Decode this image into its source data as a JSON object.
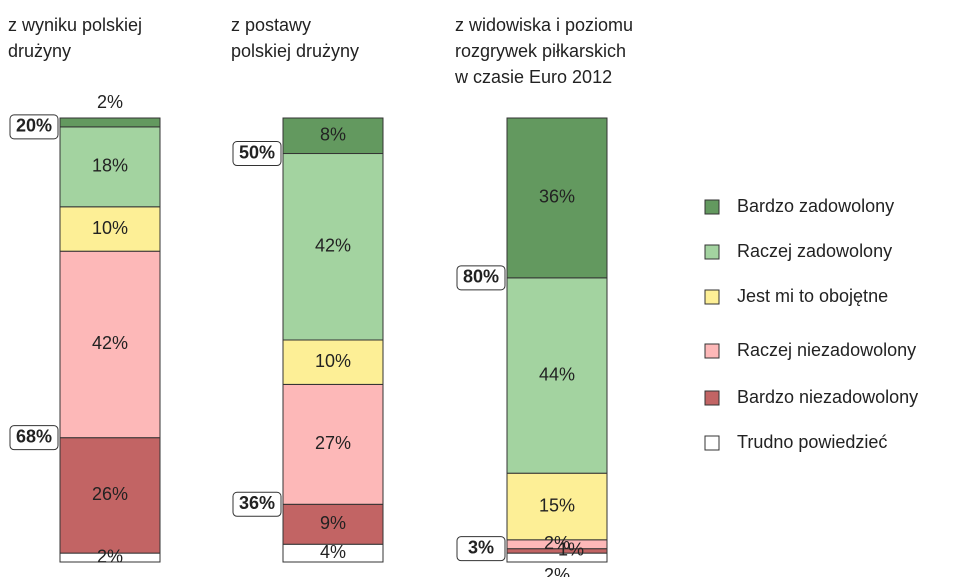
{
  "chart_data": {
    "type": "bar",
    "stacked": true,
    "categories": [
      "z wyniku polskiej\ndrużyny",
      "z postawy\npolskiej drużyny",
      "z widowiska i poziomu\nrozgrywek piłkarskich\nw czasie Euro 2012"
    ],
    "series": [
      {
        "name": "Bardzo zadowolony",
        "color": "#63995f",
        "values": [
          2,
          8,
          36
        ],
        "value_labels": [
          "2%",
          "8%",
          "36%"
        ]
      },
      {
        "name": "Raczej zadowolony",
        "color": "#a3d3a0",
        "values": [
          18,
          42,
          44
        ],
        "value_labels": [
          "18%",
          "42%",
          "44%"
        ]
      },
      {
        "name": "Jest mi to obojętne",
        "color": "#fdef96",
        "values": [
          10,
          10,
          15
        ],
        "value_labels": [
          "10%",
          "10%",
          "15%"
        ]
      },
      {
        "name": "Raczej niezadowolony",
        "color": "#fdb8b8",
        "values": [
          42,
          27,
          2
        ],
        "value_labels": [
          "42%",
          "27%",
          "2%"
        ]
      },
      {
        "name": "Bardzo niezadowolony",
        "color": "#c26464",
        "values": [
          26,
          9,
          1
        ],
        "value_labels": [
          "26%",
          "9%",
          "1%"
        ]
      },
      {
        "name": "Trudno powiedzieć",
        "color": "#ffffff",
        "values": [
          2,
          4,
          2
        ],
        "value_labels": [
          "2%",
          "4%",
          "2%"
        ]
      }
    ],
    "satisfied_labels": [
      "20%",
      "50%",
      "80%"
    ],
    "dissatisfied_labels": [
      "68%",
      "36%",
      "3%"
    ]
  }
}
